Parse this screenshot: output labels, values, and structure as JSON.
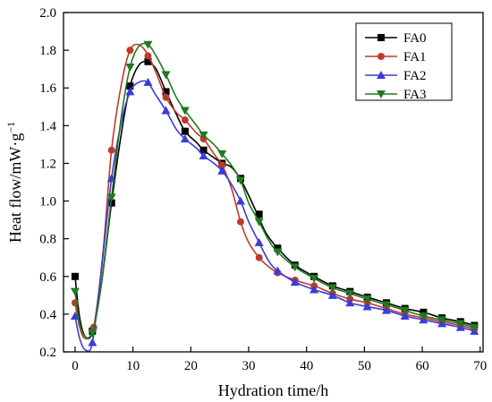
{
  "chart_data": {
    "type": "line",
    "title": "",
    "xlabel": "Hydration time/h",
    "ylabel": "Heat flow/mW·g",
    "ylabel_superscript": "−1",
    "xlim": [
      -2,
      70.5
    ],
    "ylim": [
      0.2,
      2.0
    ],
    "xticks": [
      0,
      10,
      20,
      30,
      40,
      50,
      60,
      70
    ],
    "yticks": [
      0.2,
      0.4,
      0.6,
      0.8,
      1.0,
      1.2,
      1.4,
      1.6,
      1.8,
      2.0
    ],
    "ytick_labels": [
      "0.2",
      "0.4",
      "0.6",
      "0.8",
      "1.0",
      "1.2",
      "1.4",
      "1.6",
      "1.8",
      "2.0"
    ],
    "grid": false,
    "legend_position": "top-right",
    "series": [
      {
        "name": "FA0",
        "color": "#000000",
        "marker": "square",
        "curve": [
          [
            0,
            0.6
          ],
          [
            0.8,
            0.38
          ],
          [
            1.8,
            0.28
          ],
          [
            3,
            0.31
          ],
          [
            4.5,
            0.55
          ],
          [
            6.3,
            0.99
          ],
          [
            8,
            1.36
          ],
          [
            9.5,
            1.61
          ],
          [
            11,
            1.72
          ],
          [
            12.5,
            1.74
          ],
          [
            14,
            1.7
          ],
          [
            15.7,
            1.58
          ],
          [
            17.5,
            1.46
          ],
          [
            19,
            1.37
          ],
          [
            21,
            1.31
          ],
          [
            22.2,
            1.27
          ],
          [
            24,
            1.23
          ],
          [
            25.5,
            1.2
          ],
          [
            27,
            1.18
          ],
          [
            28.5,
            1.12
          ],
          [
            30,
            1.03
          ],
          [
            31.5,
            0.93
          ],
          [
            33,
            0.83
          ],
          [
            35,
            0.75
          ],
          [
            38,
            0.66
          ],
          [
            41.3,
            0.6
          ],
          [
            44.5,
            0.55
          ],
          [
            47.5,
            0.52
          ],
          [
            50.5,
            0.49
          ],
          [
            53.8,
            0.46
          ],
          [
            57,
            0.43
          ],
          [
            60.2,
            0.41
          ],
          [
            63.4,
            0.38
          ],
          [
            66.6,
            0.36
          ],
          [
            69,
            0.34
          ]
        ],
        "markers": [
          [
            0,
            0.6
          ],
          [
            3,
            0.31
          ],
          [
            6.3,
            0.99
          ],
          [
            9.5,
            1.61
          ],
          [
            12.6,
            1.74
          ],
          [
            15.7,
            1.58
          ],
          [
            19,
            1.37
          ],
          [
            22.2,
            1.27
          ],
          [
            25.4,
            1.2
          ],
          [
            28.6,
            1.12
          ],
          [
            31.8,
            0.93
          ],
          [
            35,
            0.75
          ],
          [
            38,
            0.66
          ],
          [
            41.3,
            0.6
          ],
          [
            44.5,
            0.55
          ],
          [
            47.5,
            0.52
          ],
          [
            50.5,
            0.49
          ],
          [
            53.8,
            0.46
          ],
          [
            57,
            0.43
          ],
          [
            60.2,
            0.41
          ],
          [
            63.4,
            0.38
          ],
          [
            66.6,
            0.36
          ],
          [
            69,
            0.34
          ]
        ]
      },
      {
        "name": "FA1",
        "color": "#c0392b",
        "marker": "circle",
        "curve": [
          [
            0,
            0.46
          ],
          [
            0.8,
            0.33
          ],
          [
            1.8,
            0.27
          ],
          [
            3.2,
            0.33
          ],
          [
            4.8,
            0.72
          ],
          [
            6.3,
            1.27
          ],
          [
            8,
            1.62
          ],
          [
            9.5,
            1.8
          ],
          [
            11,
            1.83
          ],
          [
            12.5,
            1.78
          ],
          [
            14,
            1.68
          ],
          [
            15.7,
            1.55
          ],
          [
            17.5,
            1.47
          ],
          [
            19,
            1.43
          ],
          [
            21,
            1.36
          ],
          [
            22.2,
            1.33
          ],
          [
            24,
            1.25
          ],
          [
            25.4,
            1.19
          ],
          [
            27,
            1.07
          ],
          [
            28.6,
            0.89
          ],
          [
            30,
            0.78
          ],
          [
            31.8,
            0.7
          ],
          [
            33.5,
            0.65
          ],
          [
            35,
            0.62
          ],
          [
            38,
            0.58
          ],
          [
            41.3,
            0.55
          ],
          [
            44.5,
            0.51
          ],
          [
            47.5,
            0.48
          ],
          [
            50.5,
            0.46
          ],
          [
            53.8,
            0.43
          ],
          [
            57,
            0.4
          ],
          [
            60.2,
            0.38
          ],
          [
            63.4,
            0.36
          ],
          [
            66.6,
            0.34
          ],
          [
            69,
            0.32
          ]
        ],
        "markers": [
          [
            0,
            0.46
          ],
          [
            3.2,
            0.33
          ],
          [
            6.3,
            1.27
          ],
          [
            9.5,
            1.8
          ],
          [
            12.6,
            1.77
          ],
          [
            15.7,
            1.55
          ],
          [
            19,
            1.43
          ],
          [
            22.2,
            1.33
          ],
          [
            25.4,
            1.19
          ],
          [
            28.6,
            0.89
          ],
          [
            31.8,
            0.7
          ],
          [
            35,
            0.62
          ],
          [
            38,
            0.58
          ],
          [
            41.3,
            0.55
          ],
          [
            44.5,
            0.51
          ],
          [
            47.5,
            0.48
          ],
          [
            50.5,
            0.46
          ],
          [
            53.8,
            0.43
          ],
          [
            57,
            0.4
          ],
          [
            60.2,
            0.38
          ],
          [
            63.4,
            0.36
          ],
          [
            66.6,
            0.34
          ],
          [
            69,
            0.32
          ]
        ]
      },
      {
        "name": "FA2",
        "color": "#3b3bd9",
        "marker": "triangle-up",
        "curve": [
          [
            0,
            0.39
          ],
          [
            0.8,
            0.27
          ],
          [
            1.8,
            0.21
          ],
          [
            3,
            0.25
          ],
          [
            4.5,
            0.62
          ],
          [
            6.3,
            1.12
          ],
          [
            8,
            1.42
          ],
          [
            9.5,
            1.58
          ],
          [
            11,
            1.63
          ],
          [
            12.5,
            1.63
          ],
          [
            14,
            1.56
          ],
          [
            15.7,
            1.48
          ],
          [
            17.5,
            1.38
          ],
          [
            19,
            1.33
          ],
          [
            21,
            1.28
          ],
          [
            22.2,
            1.24
          ],
          [
            24,
            1.2
          ],
          [
            25.4,
            1.16
          ],
          [
            27,
            1.09
          ],
          [
            28.6,
            1.0
          ],
          [
            30,
            0.89
          ],
          [
            31.8,
            0.78
          ],
          [
            33.5,
            0.68
          ],
          [
            35,
            0.63
          ],
          [
            38,
            0.57
          ],
          [
            41.3,
            0.53
          ],
          [
            44.5,
            0.5
          ],
          [
            47.5,
            0.46
          ],
          [
            50.5,
            0.44
          ],
          [
            53.8,
            0.42
          ],
          [
            57,
            0.39
          ],
          [
            60.2,
            0.37
          ],
          [
            63.4,
            0.35
          ],
          [
            66.6,
            0.33
          ],
          [
            69,
            0.31
          ]
        ],
        "markers": [
          [
            0,
            0.39
          ],
          [
            3,
            0.25
          ],
          [
            6.3,
            1.12
          ],
          [
            9.5,
            1.58
          ],
          [
            12.6,
            1.63
          ],
          [
            15.7,
            1.48
          ],
          [
            19,
            1.33
          ],
          [
            22.2,
            1.24
          ],
          [
            25.4,
            1.16
          ],
          [
            28.6,
            1.0
          ],
          [
            31.8,
            0.78
          ],
          [
            35,
            0.63
          ],
          [
            38,
            0.57
          ],
          [
            41.3,
            0.53
          ],
          [
            44.5,
            0.5
          ],
          [
            47.5,
            0.46
          ],
          [
            50.5,
            0.44
          ],
          [
            53.8,
            0.42
          ],
          [
            57,
            0.39
          ],
          [
            60.2,
            0.37
          ],
          [
            63.4,
            0.35
          ],
          [
            66.6,
            0.33
          ],
          [
            69,
            0.31
          ]
        ]
      },
      {
        "name": "FA3",
        "color": "#1f7a1f",
        "marker": "triangle-down",
        "curve": [
          [
            0,
            0.52
          ],
          [
            0.8,
            0.35
          ],
          [
            1.8,
            0.28
          ],
          [
            3,
            0.3
          ],
          [
            4.5,
            0.55
          ],
          [
            6.3,
            1.02
          ],
          [
            8,
            1.45
          ],
          [
            9.5,
            1.71
          ],
          [
            11,
            1.82
          ],
          [
            12.6,
            1.83
          ],
          [
            14,
            1.77
          ],
          [
            15.7,
            1.67
          ],
          [
            17.5,
            1.55
          ],
          [
            19,
            1.48
          ],
          [
            21,
            1.4
          ],
          [
            22.2,
            1.35
          ],
          [
            24,
            1.3
          ],
          [
            25.4,
            1.25
          ],
          [
            27,
            1.19
          ],
          [
            28.6,
            1.11
          ],
          [
            30,
            0.99
          ],
          [
            31.8,
            0.89
          ],
          [
            33.5,
            0.79
          ],
          [
            35,
            0.73
          ],
          [
            38,
            0.65
          ],
          [
            41.3,
            0.59
          ],
          [
            44.5,
            0.54
          ],
          [
            47.5,
            0.51
          ],
          [
            50.5,
            0.48
          ],
          [
            53.8,
            0.45
          ],
          [
            57,
            0.42
          ],
          [
            60.2,
            0.39
          ],
          [
            63.4,
            0.37
          ],
          [
            66.6,
            0.35
          ],
          [
            69,
            0.33
          ]
        ],
        "markers": [
          [
            0,
            0.52
          ],
          [
            3,
            0.3
          ],
          [
            6.3,
            1.02
          ],
          [
            9.5,
            1.71
          ],
          [
            12.6,
            1.83
          ],
          [
            15.7,
            1.67
          ],
          [
            19,
            1.48
          ],
          [
            22.2,
            1.35
          ],
          [
            25.4,
            1.25
          ],
          [
            28.6,
            1.11
          ],
          [
            31.8,
            0.89
          ],
          [
            35,
            0.73
          ],
          [
            38,
            0.65
          ],
          [
            41.3,
            0.59
          ],
          [
            44.5,
            0.54
          ],
          [
            47.5,
            0.51
          ],
          [
            50.5,
            0.48
          ],
          [
            53.8,
            0.45
          ],
          [
            57,
            0.42
          ],
          [
            60.2,
            0.39
          ],
          [
            63.4,
            0.37
          ],
          [
            66.6,
            0.35
          ],
          [
            69,
            0.33
          ]
        ]
      }
    ]
  }
}
